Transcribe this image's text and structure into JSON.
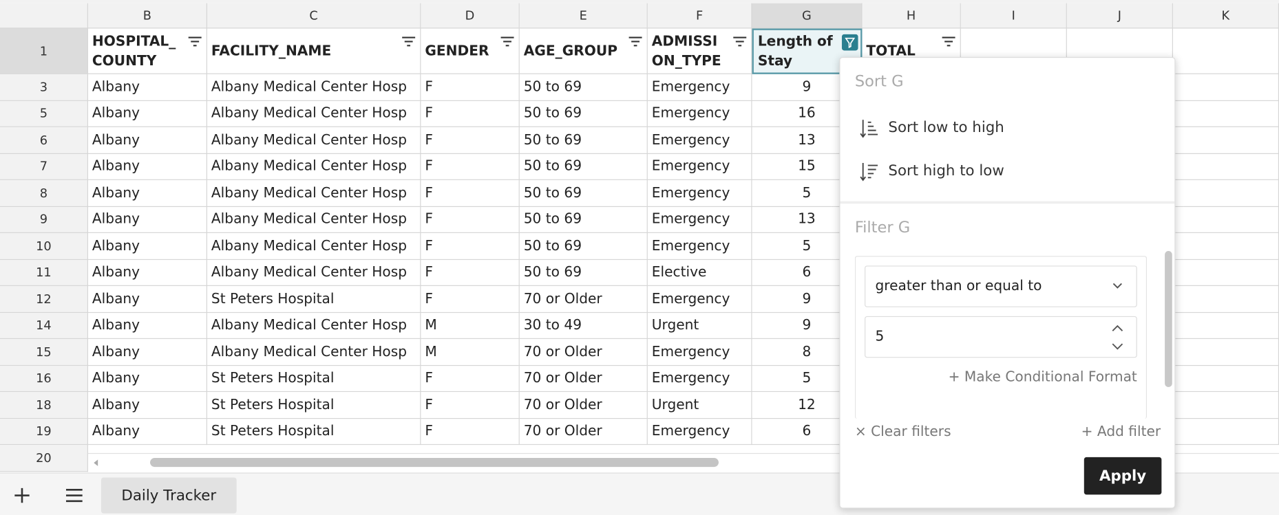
{
  "column_letters": [
    "B",
    "C",
    "D",
    "E",
    "F",
    "G",
    "H",
    "I",
    "J",
    "K"
  ],
  "header_row": {
    "row_number": "1",
    "cells": [
      "HOSPITAL_\nCOUNTY",
      "FACILITY_NAME",
      "GENDER",
      "AGE_GROUP",
      "ADMISSI\nON_TYPE",
      "Length of\nStay",
      "TOTAL_"
    ]
  },
  "rows": [
    {
      "row_number": "3",
      "cells": [
        "Albany",
        "Albany Medical Center Hosp",
        "F",
        "50 to 69",
        "Emergency",
        "9"
      ]
    },
    {
      "row_number": "5",
      "cells": [
        "Albany",
        "Albany Medical Center Hosp",
        "F",
        "50 to 69",
        "Emergency",
        "16"
      ]
    },
    {
      "row_number": "6",
      "cells": [
        "Albany",
        "Albany Medical Center Hosp",
        "F",
        "50 to 69",
        "Emergency",
        "13"
      ]
    },
    {
      "row_number": "7",
      "cells": [
        "Albany",
        "Albany Medical Center Hosp",
        "F",
        "50 to 69",
        "Emergency",
        "15"
      ]
    },
    {
      "row_number": "8",
      "cells": [
        "Albany",
        "Albany Medical Center Hosp",
        "F",
        "50 to 69",
        "Emergency",
        "5"
      ]
    },
    {
      "row_number": "9",
      "cells": [
        "Albany",
        "Albany Medical Center Hosp",
        "F",
        "50 to 69",
        "Emergency",
        "13"
      ]
    },
    {
      "row_number": "10",
      "cells": [
        "Albany",
        "Albany Medical Center Hosp",
        "F",
        "50 to 69",
        "Emergency",
        "5"
      ]
    },
    {
      "row_number": "11",
      "cells": [
        "Albany",
        "Albany Medical Center Hosp",
        "F",
        "50 to 69",
        "Elective",
        "6"
      ]
    },
    {
      "row_number": "12",
      "cells": [
        "Albany",
        "St Peters Hospital",
        "F",
        "70 or Older",
        "Emergency",
        "9"
      ]
    },
    {
      "row_number": "14",
      "cells": [
        "Albany",
        "Albany Medical Center Hosp",
        "M",
        "30 to 49",
        "Urgent",
        "9"
      ]
    },
    {
      "row_number": "15",
      "cells": [
        "Albany",
        "Albany Medical Center Hosp",
        "M",
        "70 or Older",
        "Emergency",
        "8"
      ]
    },
    {
      "row_number": "16",
      "cells": [
        "Albany",
        "St Peters Hospital",
        "F",
        "70 or Older",
        "Emergency",
        "5"
      ]
    },
    {
      "row_number": "18",
      "cells": [
        "Albany",
        "St Peters Hospital",
        "F",
        "70 or Older",
        "Urgent",
        "12"
      ]
    },
    {
      "row_number": "19",
      "cells": [
        "Albany",
        "St Peters Hospital",
        "F",
        "70 or Older",
        "Emergency",
        "6"
      ]
    }
  ],
  "last_row_number": "20",
  "sheet_tab": "Daily Tracker",
  "filter_menu": {
    "sort_title": "Sort G",
    "sort_asc": "Sort low to high",
    "sort_desc": "Sort high to low",
    "filter_title": "Filter G",
    "condition": "greater than or equal to",
    "filter_value": "5",
    "conditional_format": "Make Conditional Format",
    "clear_filters": "Clear filters",
    "add_filter": "Add filter",
    "apply": "Apply"
  }
}
